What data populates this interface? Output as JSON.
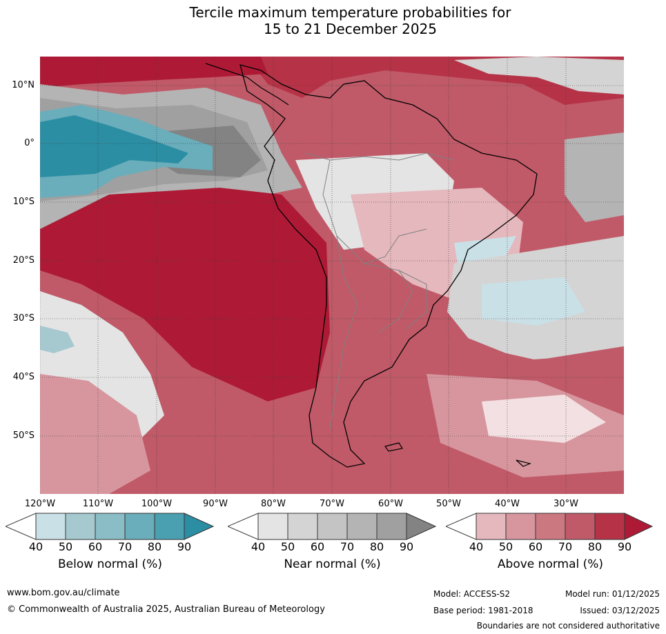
{
  "title": {
    "line1": "Tercile maximum temperature probabilities for",
    "line2": "15 to 21 December 2025"
  },
  "latitude_labels": [
    "10°N",
    "0°",
    "10°S",
    "20°S",
    "30°S",
    "40°S",
    "50°S"
  ],
  "longitude_labels": [
    "120°W",
    "110°W",
    "100°W",
    "90°W",
    "80°W",
    "70°W",
    "60°W",
    "50°W",
    "40°W",
    "30°W"
  ],
  "legend": {
    "below": {
      "label": "Below normal (%)",
      "ticks": [
        "40",
        "50",
        "60",
        "70",
        "80",
        "90"
      ],
      "colors": [
        "#c9e0e6",
        "#a6c9d0",
        "#8abdc5",
        "#6aadbb",
        "#4a9fb1",
        "#2b8ea3"
      ]
    },
    "near": {
      "label": "Near normal (%)",
      "ticks": [
        "40",
        "50",
        "60",
        "70",
        "80",
        "90"
      ],
      "colors": [
        "#e4e4e4",
        "#d4d4d4",
        "#c4c4c4",
        "#b4b4b4",
        "#a0a0a0",
        "#838383"
      ]
    },
    "above": {
      "label": "Above normal (%)",
      "ticks": [
        "40",
        "50",
        "60",
        "70",
        "80",
        "90"
      ],
      "colors": [
        "#e5b8bd",
        "#d7969e",
        "#cc7881",
        "#c05a68",
        "#b63347",
        "#ae1a36"
      ]
    }
  },
  "footer": {
    "website": "www.bom.gov.au/climate",
    "copyright": "© Commonwealth of Australia 2025, Australian Bureau of Meteorology",
    "model": "Model: ACCESS-S2",
    "model_run": "Model run: 01/12/2025",
    "base_period": "Base period: 1981-2018",
    "issued": "Issued: 03/12/2025",
    "disclaimer": "Boundaries are not considered authoritative"
  },
  "colors": {
    "land_outline": "#000000",
    "border_line": "#808080",
    "grid_line": "#333333"
  }
}
